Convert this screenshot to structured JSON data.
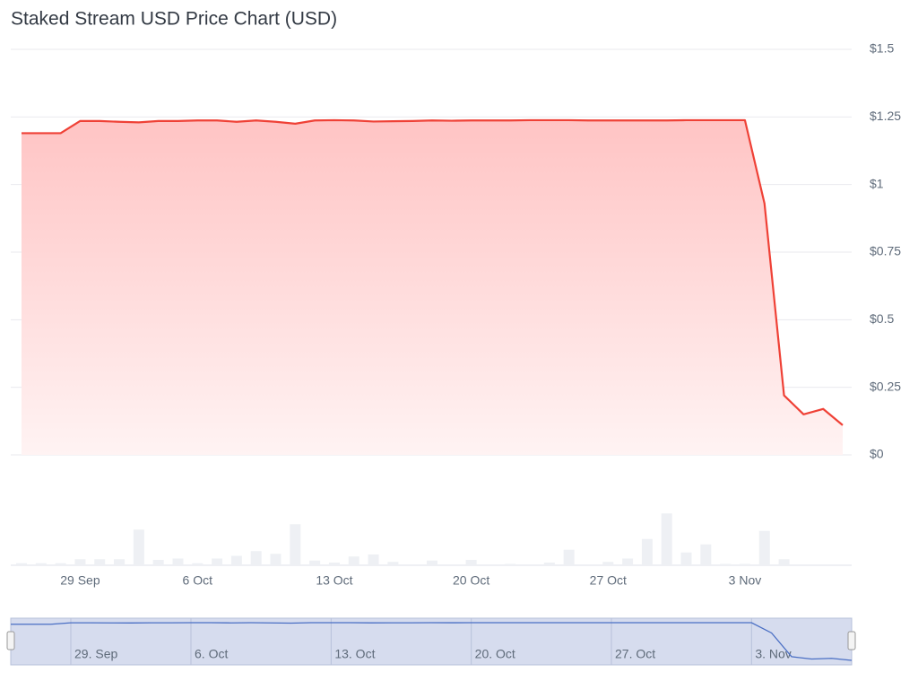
{
  "chart_data": {
    "type": "area",
    "title": "Staked Stream USD Price Chart (USD)",
    "categories": [
      null,
      null,
      null,
      "29 Sep",
      null,
      null,
      null,
      null,
      null,
      "6 Oct",
      null,
      null,
      null,
      null,
      null,
      null,
      "13 Oct",
      null,
      null,
      null,
      null,
      null,
      null,
      "20 Oct",
      null,
      null,
      null,
      null,
      null,
      null,
      "27 Oct",
      null,
      null,
      null,
      null,
      null,
      null,
      "3 Nov",
      null,
      null,
      null,
      null,
      null
    ],
    "series": [
      {
        "name": "Price",
        "color": "#ef4136",
        "values": [
          1.19,
          1.19,
          1.19,
          1.235,
          1.235,
          1.232,
          1.23,
          1.235,
          1.235,
          1.237,
          1.237,
          1.232,
          1.237,
          1.232,
          1.225,
          1.237,
          1.238,
          1.237,
          1.233,
          1.234,
          1.235,
          1.237,
          1.236,
          1.237,
          1.237,
          1.237,
          1.238,
          1.238,
          1.238,
          1.237,
          1.237,
          1.237,
          1.237,
          1.237,
          1.238,
          1.238,
          1.238,
          1.238,
          0.93,
          0.22,
          0.15,
          0.17,
          0.11
        ]
      },
      {
        "name": "Volume",
        "color": "#eef0f4",
        "axis": "y2",
        "values": [
          3,
          3,
          3,
          9,
          9,
          9,
          53,
          8,
          10,
          3,
          10,
          14,
          21,
          17,
          61,
          7,
          4,
          13,
          16,
          5,
          0,
          7,
          0,
          8,
          0,
          2,
          0,
          4,
          23,
          0,
          5,
          10,
          39,
          77,
          19,
          31,
          2,
          2,
          51,
          9,
          0,
          0,
          0
        ]
      }
    ],
    "ylim": [
      0,
      1.5
    ],
    "yticks": [
      {
        "value": 0,
        "label": "$0"
      },
      {
        "value": 0.25,
        "label": "$0.25"
      },
      {
        "value": 0.5,
        "label": "$0.5"
      },
      {
        "value": 0.75,
        "label": "$0.75"
      },
      {
        "value": 1,
        "label": "$1"
      },
      {
        "value": 1.25,
        "label": "$1.25"
      },
      {
        "value": 1.5,
        "label": "$1.5"
      }
    ],
    "y2lim": [
      0,
      200
    ],
    "grid": true,
    "navigator_labels": [
      "29. Sep",
      "6. Oct",
      "13. Oct",
      "20. Oct",
      "27. Oct",
      "3. Nov"
    ]
  }
}
